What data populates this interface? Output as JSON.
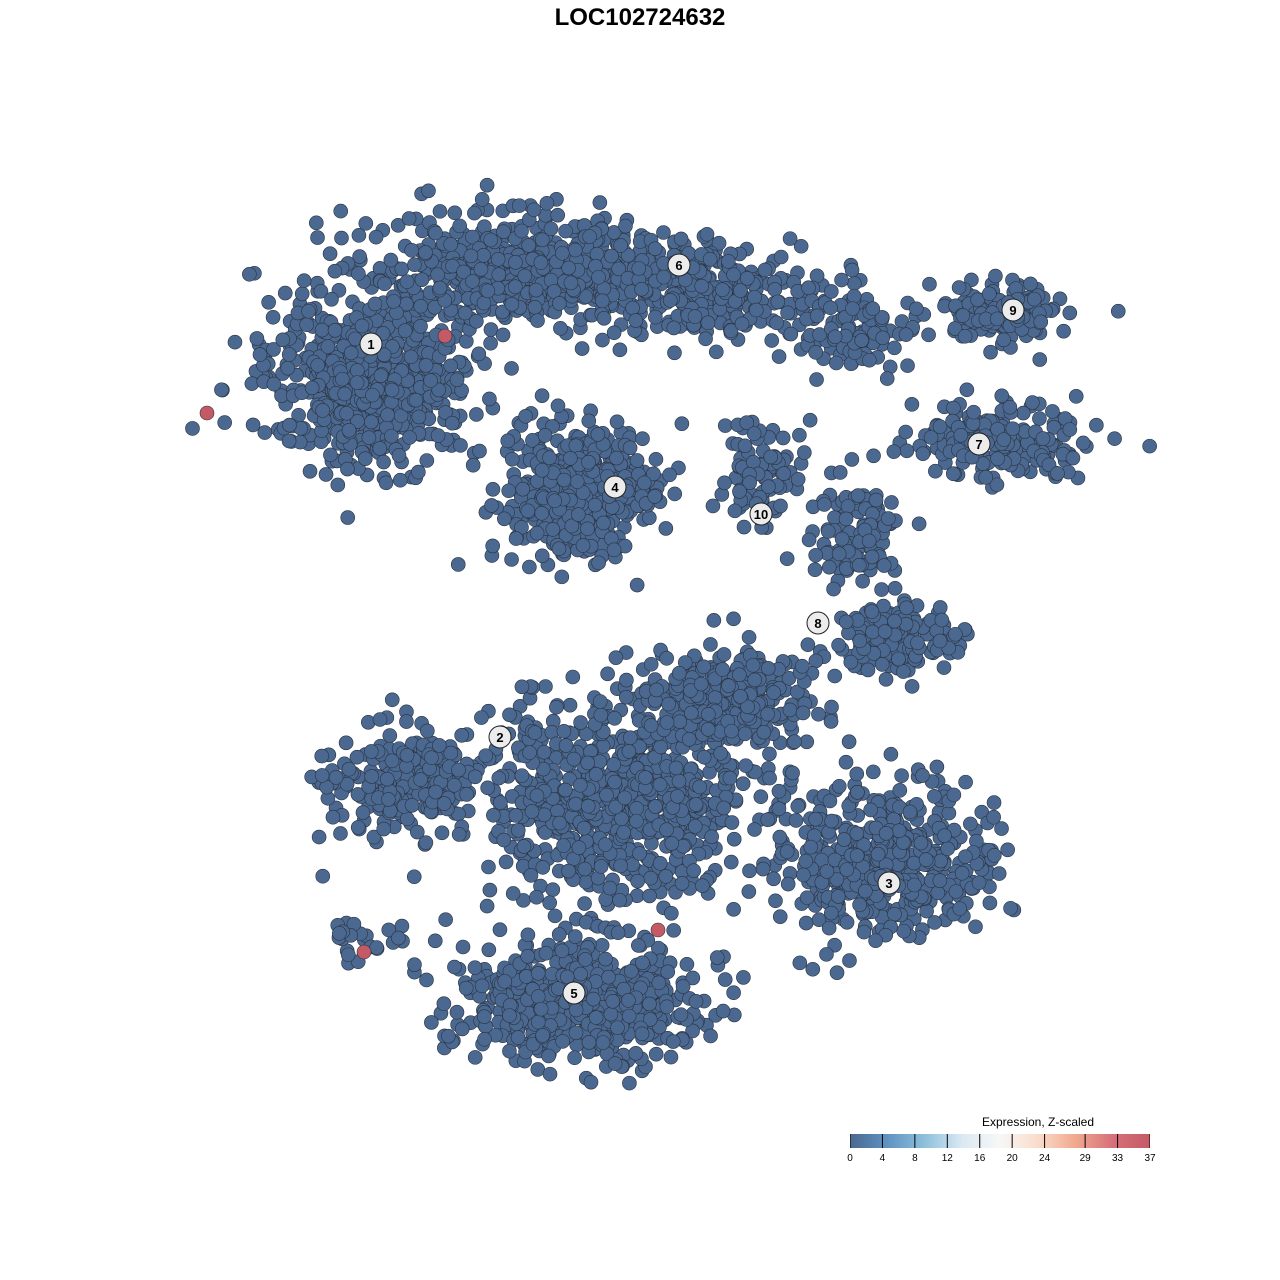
{
  "chart_data": {
    "type": "scatter",
    "title": "LOC102724632",
    "xlabel": "",
    "ylabel": "",
    "grid": false,
    "cluster_labels": [
      "1",
      "2",
      "3",
      "4",
      "5",
      "6",
      "7",
      "8",
      "9",
      "10"
    ],
    "base_color": "#4a6890",
    "point_stroke": "#2b3340",
    "high_color": "#c45a65",
    "high_expression_points": 4,
    "legend": {
      "title": "Expression, Z-scaled",
      "placement": "bottom-right",
      "ticks": [
        "0",
        "4",
        "8",
        "12",
        "16",
        "20",
        "24",
        "29",
        "33",
        "37"
      ],
      "range": [
        0,
        37
      ],
      "colors": [
        "#4a6890",
        "#5f93c2",
        "#8ec0db",
        "#dbe9f3",
        "#f7f7f7",
        "#fbdccb",
        "#f0a98f",
        "#d7707a",
        "#c45a65"
      ]
    }
  }
}
